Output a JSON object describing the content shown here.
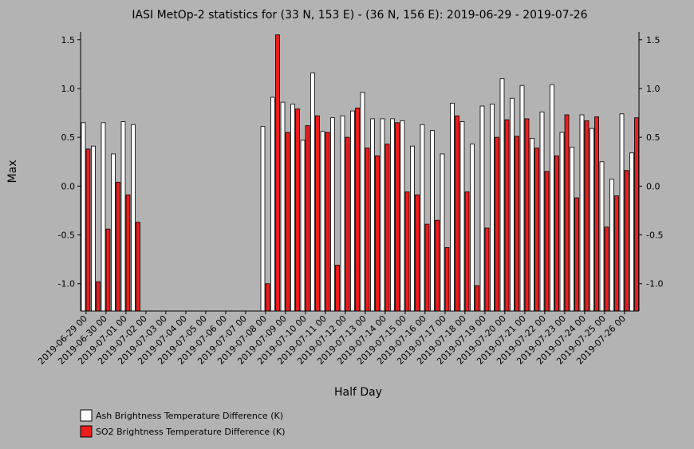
{
  "chart_data": {
    "type": "bar",
    "title": "IASI MetOp-2 statistics for (33 N, 153 E) - (36 N, 156 E): 2019-06-29 - 2019-07-26",
    "xlabel": "Half Day",
    "ylabel": "Max",
    "ylim": [
      -1.28,
      1.58
    ],
    "yticks": [
      1.5,
      1.0,
      0.5,
      0.0,
      -0.5,
      -1.0
    ],
    "ytick_labels": [
      "1.5",
      "1.0",
      "0.5",
      "0.0",
      "-0.5",
      "-1.0"
    ],
    "categories": [
      "2019-06-29 00",
      "2019-06-29 12",
      "2019-06-30 00",
      "2019-06-30 12",
      "2019-07-01 00",
      "2019-07-01 12",
      "2019-07-02 00",
      "2019-07-02 12",
      "2019-07-03 00",
      "2019-07-03 12",
      "2019-07-04 00",
      "2019-07-04 12",
      "2019-07-05 00",
      "2019-07-05 12",
      "2019-07-06 00",
      "2019-07-06 12",
      "2019-07-07 00",
      "2019-07-07 12",
      "2019-07-08 00",
      "2019-07-08 12",
      "2019-07-09 00",
      "2019-07-09 12",
      "2019-07-10 00",
      "2019-07-10 12",
      "2019-07-11 00",
      "2019-07-11 12",
      "2019-07-12 00",
      "2019-07-12 12",
      "2019-07-13 00",
      "2019-07-13 12",
      "2019-07-14 00",
      "2019-07-14 12",
      "2019-07-15 00",
      "2019-07-15 12",
      "2019-07-16 00",
      "2019-07-16 12",
      "2019-07-17 00",
      "2019-07-17 12",
      "2019-07-18 00",
      "2019-07-18 12",
      "2019-07-19 00",
      "2019-07-19 12",
      "2019-07-20 00",
      "2019-07-20 12",
      "2019-07-21 00",
      "2019-07-21 12",
      "2019-07-22 00",
      "2019-07-22 12",
      "2019-07-23 00",
      "2019-07-23 12",
      "2019-07-24 00",
      "2019-07-24 12",
      "2019-07-25 00",
      "2019-07-25 12",
      "2019-07-26 00",
      "2019-07-26 12"
    ],
    "tick_labels": [
      "2019-06-29 00",
      "2019-06-30 00",
      "2019-07-01 00",
      "2019-07-02 00",
      "2019-07-03 00",
      "2019-07-04 00",
      "2019-07-05 00",
      "2019-07-06 00",
      "2019-07-07 00",
      "2019-07-08 00",
      "2019-07-09 00",
      "2019-07-10 00",
      "2019-07-11 00",
      "2019-07-12 00",
      "2019-07-13 00",
      "2019-07-14 00",
      "2019-07-15 00",
      "2019-07-16 00",
      "2019-07-17 00",
      "2019-07-18 00",
      "2019-07-19 00",
      "2019-07-20 00",
      "2019-07-21 00",
      "2019-07-22 00",
      "2019-07-23 00",
      "2019-07-24 00",
      "2019-07-25 00",
      "2019-07-26 00"
    ],
    "series": [
      {
        "name": "Ash Brightness Temperature Difference (K)",
        "color": "#ffffff",
        "values": [
          0.65,
          0.41,
          0.65,
          0.33,
          0.66,
          0.63,
          null,
          null,
          null,
          null,
          null,
          null,
          null,
          null,
          null,
          null,
          null,
          null,
          0.61,
          0.91,
          0.86,
          0.84,
          0.47,
          1.16,
          0.56,
          0.7,
          0.72,
          0.77,
          0.96,
          0.69,
          0.69,
          0.69,
          0.67,
          0.41,
          0.63,
          0.57,
          0.33,
          0.85,
          0.66,
          0.43,
          0.82,
          0.84,
          1.1,
          0.9,
          1.03,
          0.49,
          0.76,
          1.04,
          0.55,
          0.4,
          0.73,
          0.59,
          0.25,
          0.07,
          0.74,
          0.34
        ]
      },
      {
        "name": "SO2 Brightness Temperature Difference (K)",
        "color": "#ee1c1c",
        "values": [
          0.38,
          -0.98,
          -0.44,
          0.04,
          -0.09,
          -0.37,
          null,
          null,
          null,
          null,
          null,
          null,
          null,
          null,
          null,
          null,
          null,
          null,
          -1.0,
          1.55,
          0.55,
          0.79,
          0.62,
          0.72,
          0.55,
          -0.81,
          0.5,
          0.8,
          0.39,
          0.31,
          0.43,
          0.65,
          -0.06,
          -0.09,
          -0.39,
          -0.35,
          -0.63,
          0.72,
          -0.06,
          -1.02,
          -0.43,
          0.5,
          0.68,
          0.51,
          0.69,
          0.39,
          0.15,
          0.31,
          0.73,
          -0.12,
          0.67,
          0.71,
          -0.42,
          -0.1,
          0.16,
          0.7
        ]
      }
    ],
    "grid": false,
    "legend_position": "bottom-left"
  }
}
